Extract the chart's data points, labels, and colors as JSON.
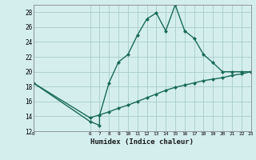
{
  "xlabel": "Humidex (Indice chaleur)",
  "bg_color": "#d4eeee",
  "grid_color": "#a8cccc",
  "line_color": "#1a6b5a",
  "curve_x": [
    0,
    6,
    7,
    7,
    8,
    9,
    10,
    11,
    12,
    13,
    14,
    15,
    16,
    17,
    18,
    19,
    20,
    21,
    22,
    23
  ],
  "curve_y": [
    18.5,
    13.3,
    12.8,
    14.1,
    18.5,
    21.3,
    22.3,
    24.9,
    27.1,
    27.9,
    25.5,
    29.0,
    25.5,
    24.5,
    22.3,
    21.2,
    20.0,
    20.0,
    20.0,
    20.0
  ],
  "straight_x": [
    0,
    6,
    7,
    8,
    9,
    10,
    11,
    12,
    13,
    14,
    15,
    16,
    17,
    18,
    19,
    20,
    21,
    22,
    23
  ],
  "straight_y": [
    18.5,
    13.8,
    14.2,
    14.6,
    15.1,
    15.5,
    16.0,
    16.5,
    17.0,
    17.5,
    17.9,
    18.2,
    18.5,
    18.8,
    19.0,
    19.2,
    19.5,
    19.7,
    20.0
  ],
  "xlim": [
    0,
    23
  ],
  "ylim": [
    12,
    29
  ],
  "yticks": [
    12,
    14,
    16,
    18,
    20,
    22,
    24,
    26,
    28
  ],
  "xticks": [
    0,
    6,
    7,
    8,
    9,
    10,
    11,
    12,
    13,
    14,
    15,
    16,
    17,
    18,
    19,
    20,
    21,
    22,
    23
  ],
  "marker": "D",
  "marker_size": 2.0,
  "linewidth": 1.0
}
